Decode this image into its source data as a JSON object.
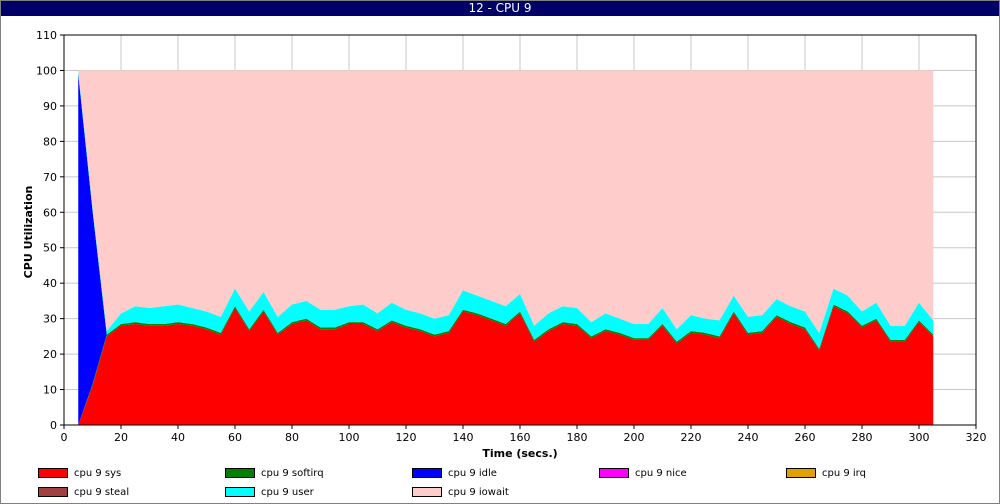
{
  "window": {
    "title": "12 - CPU 9"
  },
  "chart_data": {
    "type": "area",
    "stacked": true,
    "title": "12 - CPU 9",
    "xlabel": "Time (secs.)",
    "ylabel": "CPU Utilization",
    "xlim": [
      0,
      320
    ],
    "ylim": [
      0,
      110
    ],
    "x_ticks": [
      0,
      20,
      40,
      60,
      80,
      100,
      120,
      140,
      160,
      180,
      200,
      220,
      240,
      260,
      280,
      300,
      320
    ],
    "y_ticks": [
      0,
      10,
      20,
      30,
      40,
      50,
      60,
      70,
      80,
      90,
      100,
      110
    ],
    "grid": true,
    "legend_position": "bottom",
    "x": [
      5,
      10,
      15,
      20,
      25,
      30,
      35,
      40,
      45,
      50,
      55,
      60,
      65,
      70,
      75,
      80,
      85,
      90,
      95,
      100,
      105,
      110,
      115,
      120,
      125,
      130,
      135,
      140,
      145,
      150,
      155,
      160,
      165,
      170,
      175,
      180,
      185,
      190,
      195,
      200,
      205,
      210,
      215,
      220,
      225,
      230,
      235,
      240,
      245,
      250,
      255,
      260,
      265,
      270,
      275,
      280,
      285,
      290,
      295,
      300,
      305
    ],
    "series": [
      {
        "name": "cpu 9 sys",
        "color": "#ff0000",
        "values": [
          0,
          11,
          25,
          28,
          28.5,
          28,
          28,
          28.5,
          28,
          27,
          25.5,
          33,
          26.5,
          32,
          25.5,
          28.5,
          29.5,
          27,
          27,
          28.5,
          28.5,
          26.5,
          29,
          27.5,
          26.5,
          25,
          26,
          32,
          31,
          29.5,
          28,
          31.5,
          23.5,
          26.5,
          28.5,
          28,
          24.5,
          26.5,
          25.5,
          24,
          24,
          28,
          23,
          26,
          25.5,
          24.5,
          31.5,
          25.5,
          26,
          30.5,
          28.5,
          27,
          21,
          33.5,
          31.5,
          27.5,
          29.5,
          23.5,
          23.5,
          29,
          25
        ]
      },
      {
        "name": "cpu 9 softirq",
        "color": "#008000",
        "values": [
          0,
          0.5,
          0.5,
          0.5,
          0.5,
          0.5,
          0.5,
          0.5,
          0.5,
          0.5,
          0.5,
          0.5,
          0.5,
          0.5,
          0.5,
          0.5,
          0.5,
          0.5,
          0.5,
          0.5,
          0.5,
          0.5,
          0.5,
          0.5,
          0.5,
          0.5,
          0.5,
          0.5,
          0.5,
          0.5,
          0.5,
          0.5,
          0.5,
          0.5,
          0.5,
          0.5,
          0.5,
          0.5,
          0.5,
          0.5,
          0.5,
          0.5,
          0.5,
          0.5,
          0.5,
          0.5,
          0.5,
          0.5,
          0.5,
          0.5,
          0.5,
          0.5,
          0.5,
          0.5,
          0.5,
          0.5,
          0.5,
          0.5,
          0.5,
          0.5,
          0.5
        ]
      },
      {
        "name": "cpu 9 idle",
        "color": "#0000ff",
        "values": [
          99,
          49,
          0,
          0,
          0,
          0,
          0,
          0,
          0,
          0,
          0,
          0,
          0,
          0,
          0,
          0,
          0,
          0,
          0,
          0,
          0,
          0,
          0,
          0,
          0,
          0,
          0,
          0,
          0,
          0,
          0,
          0,
          0,
          0,
          0,
          0,
          0,
          0,
          0,
          0,
          0,
          0,
          0,
          0,
          0,
          0,
          0,
          0,
          0,
          0,
          0,
          0,
          0,
          0,
          0,
          0,
          0,
          0,
          0,
          0,
          0
        ]
      },
      {
        "name": "cpu 9 nice",
        "color": "#ff00ff",
        "values": [
          0,
          0,
          0,
          0,
          0,
          0,
          0,
          0,
          0,
          0,
          0,
          0,
          0,
          0,
          0,
          0,
          0,
          0,
          0,
          0,
          0,
          0,
          0,
          0,
          0,
          0,
          0,
          0,
          0,
          0,
          0,
          0,
          0,
          0,
          0,
          0,
          0,
          0,
          0,
          0,
          0,
          0,
          0,
          0,
          0,
          0,
          0,
          0,
          0,
          0,
          0,
          0,
          0,
          0,
          0,
          0,
          0,
          0,
          0,
          0,
          0
        ]
      },
      {
        "name": "cpu 9 irq",
        "color": "#e0a000",
        "values": [
          0,
          0,
          0,
          0,
          0,
          0,
          0,
          0,
          0,
          0,
          0,
          0,
          0,
          0,
          0,
          0,
          0,
          0,
          0,
          0,
          0,
          0,
          0,
          0,
          0,
          0,
          0,
          0,
          0,
          0,
          0,
          0,
          0,
          0,
          0,
          0,
          0,
          0,
          0,
          0,
          0,
          0,
          0,
          0,
          0,
          0,
          0,
          0,
          0,
          0,
          0,
          0,
          0,
          0,
          0,
          0,
          0,
          0,
          0,
          0,
          0
        ]
      },
      {
        "name": "cpu 9 steal",
        "color": "#a04040",
        "values": [
          0,
          0,
          0,
          0,
          0,
          0,
          0,
          0,
          0,
          0,
          0,
          0,
          0,
          0,
          0,
          0,
          0,
          0,
          0,
          0,
          0,
          0,
          0,
          0,
          0,
          0,
          0,
          0,
          0,
          0,
          0,
          0,
          0,
          0,
          0,
          0,
          0,
          0,
          0,
          0,
          0,
          0,
          0,
          0,
          0,
          0,
          0,
          0,
          0,
          0,
          0,
          0,
          0,
          0,
          0,
          0,
          0,
          0,
          0,
          0,
          0
        ]
      },
      {
        "name": "cpu 9 user",
        "color": "#00ffff",
        "values": [
          1,
          1,
          1,
          3,
          4.5,
          4.5,
          5,
          5,
          4.5,
          4.5,
          4.5,
          5,
          5,
          5,
          4.5,
          5,
          5,
          5,
          5,
          4.5,
          5,
          4.5,
          5,
          4.5,
          4.5,
          4.5,
          4.5,
          5.5,
          5,
          5,
          5,
          5,
          4,
          4.5,
          4.5,
          4.5,
          4,
          4.5,
          4,
          4,
          4,
          4.5,
          3.5,
          4.5,
          4,
          4.5,
          4.5,
          4.5,
          4.5,
          4.5,
          4.5,
          4.5,
          4.5,
          4.5,
          4.5,
          4,
          4.5,
          4,
          4,
          5,
          4
        ]
      },
      {
        "name": "cpu 9 iowait",
        "color": "#ffcccc",
        "values": [
          0,
          38.5,
          73.5,
          68.5,
          66.5,
          67,
          66.5,
          66,
          67,
          68,
          69.5,
          61.5,
          68,
          62.5,
          69.5,
          66,
          65,
          67.5,
          67.5,
          66.5,
          66,
          68.5,
          65.5,
          67.5,
          68.5,
          70,
          69,
          62,
          63.5,
          65,
          66.5,
          63,
          72,
          68.5,
          66.5,
          67,
          71,
          68.5,
          70,
          71.5,
          71.5,
          67,
          73,
          69,
          70,
          70.5,
          63.5,
          69.5,
          69,
          64.5,
          66.5,
          68,
          74,
          61.5,
          63.5,
          68,
          65.5,
          72,
          72,
          65.5,
          70.5
        ]
      }
    ]
  }
}
